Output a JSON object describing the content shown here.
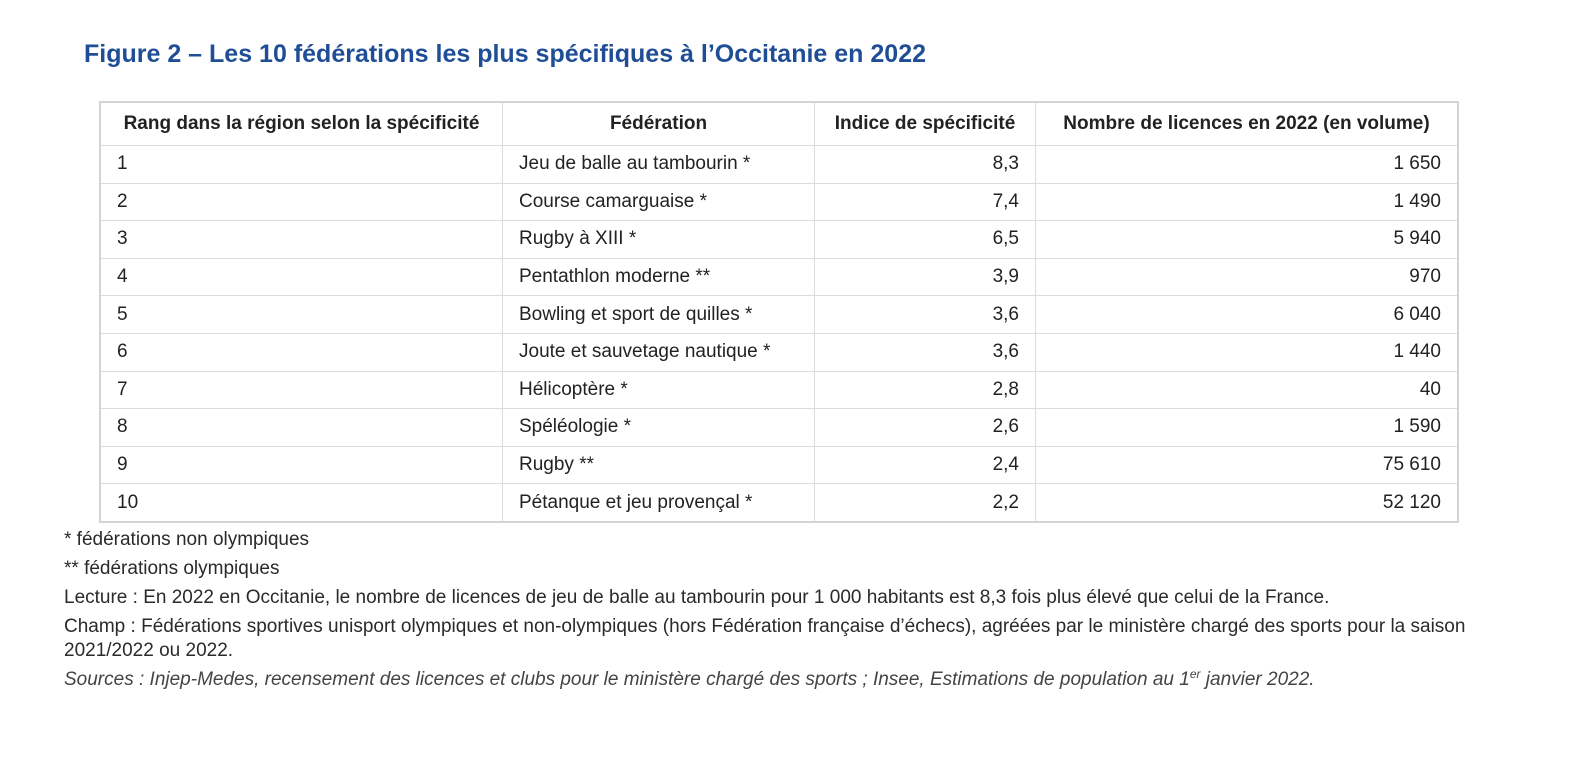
{
  "title": "Figure 2 – Les 10 fédérations les plus spécifiques à l’Occitanie en 2022",
  "table": {
    "headers": [
      "Rang dans la région selon la spécificité",
      "Fédération",
      "Indice de spécificité",
      "Nombre de licences en 2022 (en volume)"
    ],
    "rows": [
      [
        "1",
        "Jeu de balle au tambourin *",
        "8,3",
        "1 650"
      ],
      [
        "2",
        "Course camarguaise *",
        "7,4",
        "1 490"
      ],
      [
        "3",
        "Rugby à XIII *",
        "6,5",
        "5 940"
      ],
      [
        "4",
        "Pentathlon moderne **",
        "3,9",
        "970"
      ],
      [
        "5",
        "Bowling et sport de quilles *",
        "3,6",
        "6 040"
      ],
      [
        "6",
        "Joute et sauvetage nautique *",
        "3,6",
        "1 440"
      ],
      [
        "7",
        "Hélicoptère *",
        "2,8",
        "40"
      ],
      [
        "8",
        "Spéléologie *",
        "2,6",
        "1 590"
      ],
      [
        "9",
        "Rugby **",
        "2,4",
        "75 610"
      ],
      [
        "10",
        "Pétanque et jeu provençal *",
        "2,2",
        "52 120"
      ]
    ]
  },
  "notes": {
    "non_olympic": "* fédérations non olympiques",
    "olympic": "** fédérations olympiques",
    "lecture": "Lecture : En 2022 en Occitanie, le nombre de licences de jeu de balle au tambourin pour 1 000 habitants est 8,3 fois plus élevé que celui de la France.",
    "champ": "Champ : Fédérations sportives unisport olympiques et non-olympiques (hors Fédération française d’échecs), agréées par le ministère chargé des sports pour la saison 2021/2022 ou 2022.",
    "sources_before": "Sources : Injep-Medes, recensement des licences et clubs pour le ministère chargé des sports ; Insee, Estimations de population au 1",
    "sources_sup": "er",
    "sources_after": " janvier 2022."
  }
}
